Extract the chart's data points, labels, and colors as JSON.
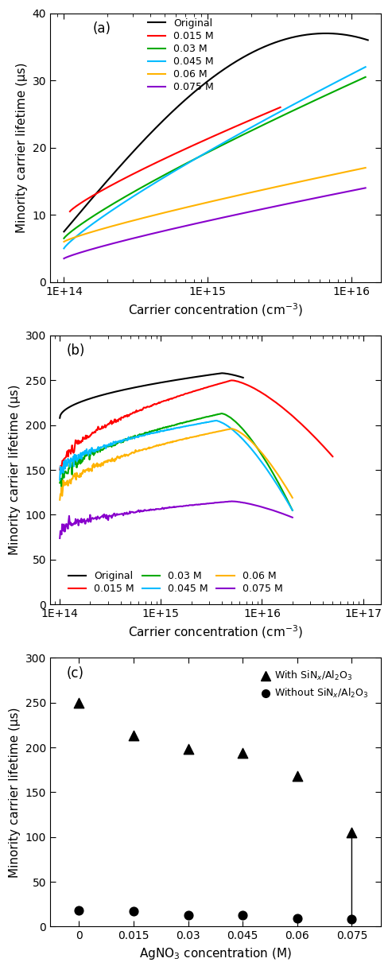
{
  "panel_a": {
    "label": "(a)",
    "xlim_lo": 80000000000000.0,
    "xlim_hi": 1.6e+16,
    "ylim": [
      0,
      40
    ],
    "yticks": [
      0,
      10,
      20,
      30,
      40
    ],
    "xticks": [
      100000000000000.0,
      1000000000000000.0,
      1e+16
    ],
    "xticklabels": [
      "1E+14",
      "1E+15",
      "1E+16"
    ],
    "ylabel": "Minority carrier lifetime (μs)",
    "xlabel": "Carrier concentration (cm⁻³)",
    "series": [
      {
        "label": "Original",
        "color": "#000000",
        "x_start": 100000000000000.0,
        "x_end": 1.3e+16,
        "y_start": 7.5,
        "y_end": 36.0,
        "y_peak": 37.0,
        "x_peak": 1.05e+16,
        "is_original": true
      },
      {
        "label": "0.015 M",
        "color": "#FF0000",
        "x_start": 110000000000000.0,
        "x_end": 3200000000000000.0,
        "y_start": 10.5,
        "y_end": 26.0,
        "is_original": false
      },
      {
        "label": "0.03 M",
        "color": "#00AA00",
        "x_start": 100000000000000.0,
        "x_end": 1.25e+16,
        "y_start": 6.5,
        "y_end": 30.5,
        "is_original": false
      },
      {
        "label": "0.045 M",
        "color": "#00BBFF",
        "x_start": 100000000000000.0,
        "x_end": 1.25e+16,
        "y_start": 5.0,
        "y_end": 32.0,
        "is_original": false
      },
      {
        "label": "0.06 M",
        "color": "#FFB300",
        "x_start": 100000000000000.0,
        "x_end": 1.25e+16,
        "y_start": 6.0,
        "y_end": 17.0,
        "is_original": false
      },
      {
        "label": "0.075 M",
        "color": "#8800CC",
        "x_start": 100000000000000.0,
        "x_end": 1.25e+16,
        "y_start": 3.5,
        "y_end": 14.0,
        "is_original": false
      }
    ]
  },
  "panel_b": {
    "label": "(b)",
    "xlim_lo": 80000000000000.0,
    "xlim_hi": 1.5e+17,
    "ylim": [
      0,
      300
    ],
    "yticks": [
      0,
      50,
      100,
      150,
      200,
      250,
      300
    ],
    "xticks": [
      100000000000000.0,
      1000000000000000.0,
      1e+16,
      1e+17
    ],
    "xticklabels": [
      "1E+14",
      "1E+15",
      "1E+16",
      "1E+17"
    ],
    "ylabel": "Minority carrier lifetime (μs)",
    "xlabel": "Carrier concentration (cm⁻³)",
    "series": [
      {
        "label": "Original",
        "color": "#000000",
        "y_start": 208,
        "x_peak": 4000000000000000.0,
        "y_peak": 258,
        "x_end": 6500000000000000.0,
        "y_end": 253,
        "noisy": false
      },
      {
        "label": "0.015 M",
        "color": "#FF0000",
        "y_start": 145,
        "x_peak": 5000000000000000.0,
        "y_peak": 250,
        "x_end": 5e+16,
        "y_end": 165,
        "noisy": true
      },
      {
        "label": "0.03 M",
        "color": "#00AA00",
        "y_start": 132,
        "x_peak": 4000000000000000.0,
        "y_peak": 213,
        "x_end": 2e+16,
        "y_end": 105,
        "noisy": true
      },
      {
        "label": "0.045 M",
        "color": "#00BBFF",
        "y_start": 144,
        "x_peak": 3500000000000000.0,
        "y_peak": 205,
        "x_end": 2e+16,
        "y_end": 105,
        "noisy": true
      },
      {
        "label": "0.06 M",
        "color": "#FFB300",
        "y_start": 119,
        "x_peak": 5000000000000000.0,
        "y_peak": 196,
        "x_end": 2e+16,
        "y_end": 119,
        "noisy": true
      },
      {
        "label": "0.075 M",
        "color": "#8800CC",
        "y_start": 80,
        "x_peak": 5000000000000000.0,
        "y_peak": 115,
        "x_end": 2e+16,
        "y_end": 97,
        "noisy": true
      }
    ]
  },
  "panel_c": {
    "label": "(c)",
    "xlabel": "AgNO₃ concentration (M)",
    "ylabel": "Minority carrier lifetime (μs)",
    "ylim": [
      0,
      300
    ],
    "yticks": [
      0,
      50,
      100,
      150,
      200,
      250,
      300
    ],
    "x_vals": [
      0,
      0.015,
      0.03,
      0.045,
      0.06,
      0.075
    ],
    "with_passivation": [
      250,
      213,
      198,
      194,
      168,
      105
    ],
    "without_passivation": [
      18,
      17,
      13,
      13,
      9,
      8
    ]
  }
}
